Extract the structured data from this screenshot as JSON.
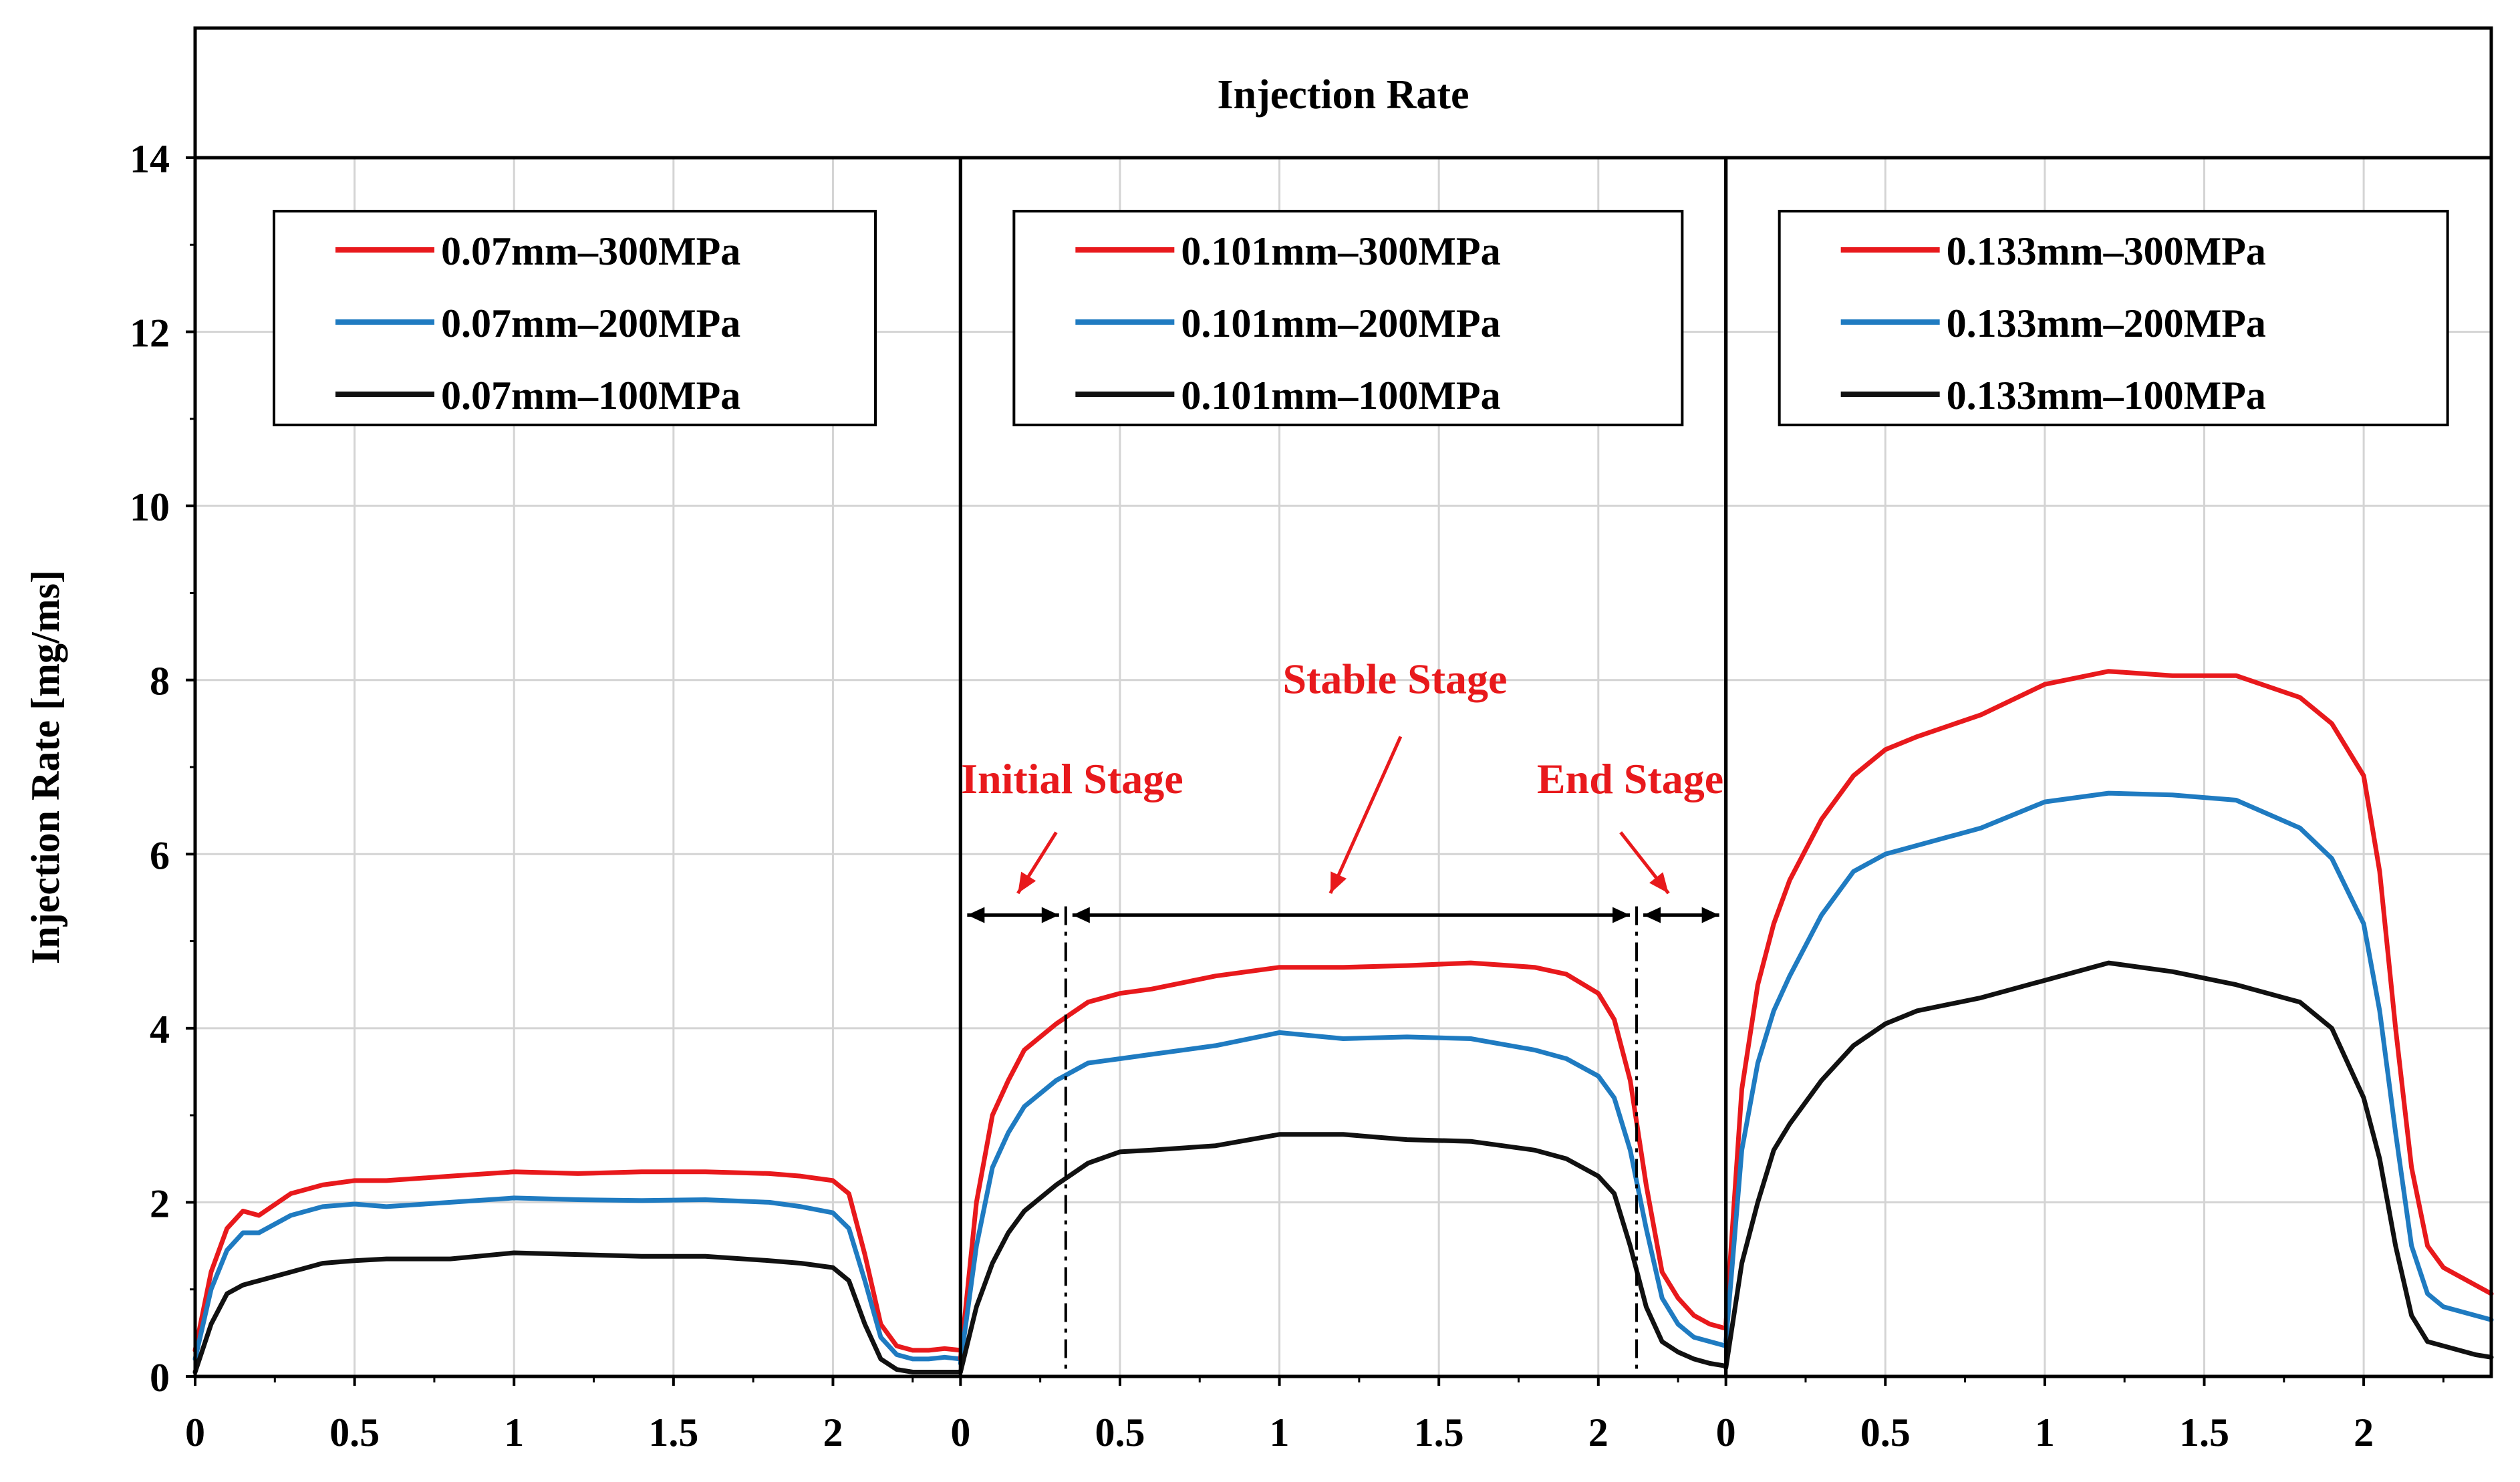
{
  "chart_data": {
    "type": "line",
    "title": "Injection Rate",
    "ylabel": "Injection Rate [mg/ms]",
    "xlabel": "",
    "ylim": [
      0,
      14
    ],
    "yticks": [
      "0",
      "2",
      "4",
      "6",
      "8",
      "10",
      "12",
      "14"
    ],
    "xlim": [
      0,
      2.4
    ],
    "xticks": [
      "0",
      "0.5",
      "1",
      "1.5",
      "2"
    ],
    "grid": true,
    "legend_position": "top of each panel",
    "colors": {
      "300MPa": "#e8191c",
      "200MPa": "#1f7bc1",
      "100MPa": "#111111",
      "annotation": "#e8191c"
    },
    "x_common": [
      0,
      0.05,
      0.1,
      0.15,
      0.2,
      0.3,
      0.4,
      0.5,
      0.6,
      0.8,
      1.0,
      1.2,
      1.4,
      1.6,
      1.8,
      1.9,
      2.0,
      2.05,
      2.1,
      2.15,
      2.2,
      2.25,
      2.3,
      2.35,
      2.4
    ],
    "panels": [
      {
        "name": "panel-0.07mm",
        "xmax": 2.4,
        "series": [
          {
            "name": "0.07mm–300MPa",
            "color": "#e8191c",
            "x": [
              0,
              0.05,
              0.1,
              0.15,
              0.2,
              0.3,
              0.4,
              0.5,
              0.6,
              0.8,
              1.0,
              1.2,
              1.4,
              1.6,
              1.8,
              1.9,
              2.0,
              2.05,
              2.1,
              2.15,
              2.2,
              2.25,
              2.3,
              2.35,
              2.4
            ],
            "y": [
              0.3,
              1.2,
              1.7,
              1.9,
              1.85,
              2.1,
              2.2,
              2.25,
              2.25,
              2.3,
              2.35,
              2.33,
              2.35,
              2.35,
              2.33,
              2.3,
              2.25,
              2.1,
              1.4,
              0.6,
              0.35,
              0.3,
              0.3,
              0.32,
              0.3
            ]
          },
          {
            "name": "0.07mm–200MPa",
            "color": "#1f7bc1",
            "x": [
              0,
              0.05,
              0.1,
              0.15,
              0.2,
              0.3,
              0.4,
              0.5,
              0.6,
              0.8,
              1.0,
              1.2,
              1.4,
              1.6,
              1.8,
              1.9,
              2.0,
              2.05,
              2.1,
              2.15,
              2.2,
              2.25,
              2.3,
              2.35,
              2.4
            ],
            "y": [
              0.2,
              1.0,
              1.45,
              1.65,
              1.65,
              1.85,
              1.95,
              1.98,
              1.95,
              2.0,
              2.05,
              2.03,
              2.02,
              2.03,
              2.0,
              1.95,
              1.88,
              1.7,
              1.1,
              0.45,
              0.25,
              0.2,
              0.2,
              0.22,
              0.2
            ]
          },
          {
            "name": "0.07mm–100MPa",
            "color": "#111111",
            "x": [
              0,
              0.05,
              0.1,
              0.15,
              0.2,
              0.3,
              0.4,
              0.5,
              0.6,
              0.8,
              1.0,
              1.2,
              1.4,
              1.6,
              1.8,
              1.9,
              2.0,
              2.05,
              2.1,
              2.15,
              2.2,
              2.25,
              2.3,
              2.35,
              2.4
            ],
            "y": [
              0.05,
              0.6,
              0.95,
              1.05,
              1.1,
              1.2,
              1.3,
              1.33,
              1.35,
              1.35,
              1.42,
              1.4,
              1.38,
              1.38,
              1.33,
              1.3,
              1.25,
              1.1,
              0.6,
              0.2,
              0.08,
              0.05,
              0.05,
              0.05,
              0.05
            ]
          }
        ],
        "legend": [
          "0.07mm–300MPa",
          "0.07mm–200MPa",
          "0.07mm–100MPa"
        ]
      },
      {
        "name": "panel-0.101mm",
        "xmax": 2.4,
        "series": [
          {
            "name": "0.101mm–300MPa",
            "color": "#e8191c",
            "x": [
              0,
              0.05,
              0.1,
              0.15,
              0.2,
              0.3,
              0.4,
              0.5,
              0.6,
              0.8,
              1.0,
              1.2,
              1.4,
              1.6,
              1.8,
              1.9,
              2.0,
              2.05,
              2.1,
              2.15,
              2.2,
              2.25,
              2.3,
              2.35,
              2.4
            ],
            "y": [
              0.2,
              2.0,
              3.0,
              3.4,
              3.75,
              4.05,
              4.3,
              4.4,
              4.45,
              4.6,
              4.7,
              4.7,
              4.72,
              4.75,
              4.7,
              4.62,
              4.4,
              4.1,
              3.4,
              2.2,
              1.2,
              0.9,
              0.7,
              0.6,
              0.55
            ]
          },
          {
            "name": "0.101mm–200MPa",
            "color": "#1f7bc1",
            "x": [
              0,
              0.05,
              0.1,
              0.15,
              0.2,
              0.3,
              0.4,
              0.5,
              0.6,
              0.8,
              1.0,
              1.2,
              1.4,
              1.6,
              1.8,
              1.9,
              2.0,
              2.05,
              2.1,
              2.15,
              2.2,
              2.25,
              2.3,
              2.35,
              2.4
            ],
            "y": [
              0.15,
              1.5,
              2.4,
              2.8,
              3.1,
              3.4,
              3.6,
              3.65,
              3.7,
              3.8,
              3.95,
              3.88,
              3.9,
              3.88,
              3.75,
              3.65,
              3.45,
              3.2,
              2.6,
              1.7,
              0.9,
              0.6,
              0.45,
              0.4,
              0.35
            ]
          },
          {
            "name": "0.101mm–100MPa",
            "color": "#111111",
            "x": [
              0,
              0.05,
              0.1,
              0.15,
              0.2,
              0.3,
              0.4,
              0.5,
              0.6,
              0.8,
              1.0,
              1.2,
              1.4,
              1.6,
              1.8,
              1.9,
              2.0,
              2.05,
              2.1,
              2.15,
              2.2,
              2.25,
              2.3,
              2.35,
              2.4
            ],
            "y": [
              0.05,
              0.8,
              1.3,
              1.65,
              1.9,
              2.2,
              2.45,
              2.58,
              2.6,
              2.65,
              2.78,
              2.78,
              2.72,
              2.7,
              2.6,
              2.5,
              2.3,
              2.1,
              1.5,
              0.8,
              0.4,
              0.28,
              0.2,
              0.15,
              0.12
            ]
          }
        ],
        "legend": [
          "0.101mm–300MPa",
          "0.101mm–200MPa",
          "0.101mm–100MPa"
        ],
        "annotations": {
          "stable": "Stable Stage",
          "initial": "Initial  Stage",
          "end": "End Stage",
          "boundaries_x": [
            0.33,
            2.12
          ]
        }
      },
      {
        "name": "panel-0.133mm",
        "xmax": 2.4,
        "series": [
          {
            "name": "0.133mm–300MPa",
            "color": "#e8191c",
            "x": [
              0,
              0.05,
              0.1,
              0.15,
              0.2,
              0.3,
              0.4,
              0.5,
              0.6,
              0.8,
              1.0,
              1.2,
              1.4,
              1.6,
              1.8,
              1.9,
              2.0,
              2.05,
              2.1,
              2.15,
              2.2,
              2.25,
              2.3,
              2.35,
              2.4
            ],
            "y": [
              0.6,
              3.3,
              4.5,
              5.2,
              5.7,
              6.4,
              6.9,
              7.2,
              7.35,
              7.6,
              7.95,
              8.1,
              8.05,
              8.05,
              7.8,
              7.5,
              6.9,
              5.8,
              4.0,
              2.4,
              1.5,
              1.25,
              1.15,
              1.05,
              0.95
            ]
          },
          {
            "name": "0.133mm–200MPa",
            "color": "#1f7bc1",
            "x": [
              0,
              0.05,
              0.1,
              0.15,
              0.2,
              0.3,
              0.4,
              0.5,
              0.6,
              0.8,
              1.0,
              1.2,
              1.4,
              1.6,
              1.8,
              1.9,
              2.0,
              2.05,
              2.1,
              2.15,
              2.2,
              2.25,
              2.3,
              2.35,
              2.4
            ],
            "y": [
              0.4,
              2.6,
              3.6,
              4.2,
              4.6,
              5.3,
              5.8,
              6.0,
              6.1,
              6.3,
              6.6,
              6.7,
              6.68,
              6.62,
              6.3,
              5.95,
              5.2,
              4.2,
              2.8,
              1.5,
              0.95,
              0.8,
              0.75,
              0.7,
              0.65
            ]
          },
          {
            "name": "0.133mm–100MPa",
            "color": "#111111",
            "x": [
              0,
              0.05,
              0.1,
              0.15,
              0.2,
              0.3,
              0.4,
              0.5,
              0.6,
              0.8,
              1.0,
              1.2,
              1.4,
              1.6,
              1.8,
              1.9,
              2.0,
              2.05,
              2.1,
              2.15,
              2.2,
              2.25,
              2.3,
              2.35,
              2.4
            ],
            "y": [
              0.1,
              1.3,
              2.0,
              2.6,
              2.9,
              3.4,
              3.8,
              4.05,
              4.2,
              4.35,
              4.55,
              4.75,
              4.65,
              4.5,
              4.3,
              4.0,
              3.2,
              2.5,
              1.5,
              0.7,
              0.4,
              0.35,
              0.3,
              0.25,
              0.22
            ]
          }
        ],
        "legend": [
          "0.133mm–300MPa",
          "0.133mm–200MPa",
          "0.133mm–100MPa"
        ]
      }
    ]
  }
}
